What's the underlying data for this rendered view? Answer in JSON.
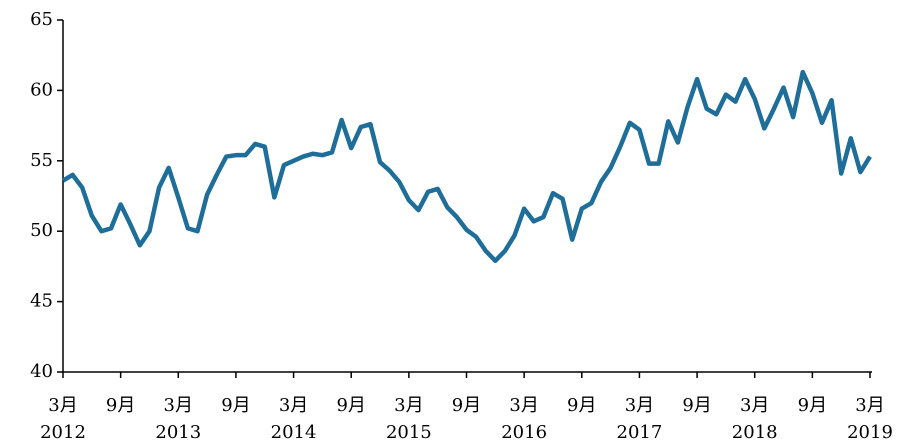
{
  "chart_data": {
    "type": "line",
    "categories": [
      "3月",
      null,
      null,
      null,
      null,
      null,
      "9月",
      null,
      null,
      null,
      null,
      null,
      "3月",
      null,
      null,
      null,
      null,
      null,
      "9月",
      null,
      null,
      null,
      null,
      null,
      "3月",
      null,
      null,
      null,
      null,
      null,
      "9月",
      null,
      null,
      null,
      null,
      null,
      "3月",
      null,
      null,
      null,
      null,
      null,
      "9月",
      null,
      null,
      null,
      null,
      null,
      "3月",
      null,
      null,
      null,
      null,
      null,
      "9月",
      null,
      null,
      null,
      null,
      null,
      "3月",
      null,
      null,
      null,
      null,
      null,
      "9月",
      null,
      null,
      null,
      null,
      null,
      "3月",
      null,
      null,
      null,
      null,
      null,
      "9月",
      null,
      null,
      null,
      null,
      null,
      "3月"
    ],
    "years": [
      "2012",
      null,
      null,
      null,
      null,
      null,
      null,
      null,
      null,
      null,
      null,
      null,
      "2013",
      null,
      null,
      null,
      null,
      null,
      null,
      null,
      null,
      null,
      null,
      null,
      "2014",
      null,
      null,
      null,
      null,
      null,
      null,
      null,
      null,
      null,
      null,
      null,
      "2015",
      null,
      null,
      null,
      null,
      null,
      null,
      null,
      null,
      null,
      null,
      null,
      "2016",
      null,
      null,
      null,
      null,
      null,
      null,
      null,
      null,
      null,
      null,
      null,
      "2017",
      null,
      null,
      null,
      null,
      null,
      null,
      null,
      null,
      null,
      null,
      null,
      "2018",
      null,
      null,
      null,
      null,
      null,
      null,
      null,
      null,
      null,
      null,
      null,
      "2019"
    ],
    "series": [
      {
        "color": "#1f6e99",
        "values": [
          53.6,
          54.0,
          53.1,
          51.1,
          50.0,
          50.2,
          51.9,
          50.5,
          49.0,
          50.0,
          53.1,
          54.5,
          52.4,
          50.2,
          50.0,
          52.6,
          54.0,
          55.3,
          55.4,
          55.4,
          56.2,
          56.0,
          52.4,
          54.7,
          55.0,
          55.3,
          55.5,
          55.4,
          55.6,
          57.9,
          55.9,
          57.4,
          57.6,
          54.9,
          54.3,
          53.5,
          52.2,
          51.5,
          52.8,
          53.0,
          51.7,
          51.0,
          50.1,
          49.6,
          48.6,
          47.9,
          48.6,
          49.7,
          51.6,
          50.7,
          51.0,
          52.7,
          52.3,
          49.4,
          51.6,
          52.0,
          53.5,
          54.5,
          56.0,
          57.7,
          57.2,
          54.8,
          54.8,
          57.8,
          56.3,
          58.8,
          60.8,
          58.7,
          58.3,
          59.7,
          59.2,
          60.8,
          59.4,
          57.3,
          58.7,
          60.2,
          58.1,
          61.3,
          59.8,
          57.7,
          59.3,
          54.1,
          56.6,
          54.2,
          55.3
        ]
      }
    ],
    "ylim": [
      40,
      65
    ],
    "yticks": [
      40,
      45,
      50,
      55,
      60,
      65
    ]
  }
}
